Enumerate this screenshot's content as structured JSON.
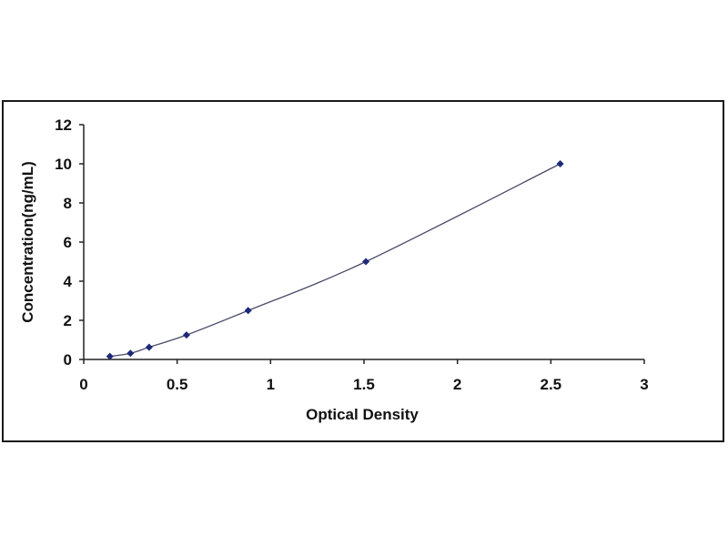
{
  "chart_data": {
    "type": "scatter",
    "title": "",
    "xlabel": "Optical Density",
    "ylabel": "Concentration(ng/mL)",
    "xlim": [
      0,
      3
    ],
    "ylim": [
      0,
      12
    ],
    "x_ticks": [
      "0",
      "0.5",
      "1",
      "1.5",
      "2",
      "2.5",
      "3"
    ],
    "y_ticks": [
      "0",
      "2",
      "4",
      "6",
      "8",
      "10",
      "12"
    ],
    "grid": false,
    "legend": "none",
    "series": [
      {
        "x": [
          0.14,
          0.25,
          0.35,
          0.55,
          0.88,
          1.51,
          2.55
        ],
        "y": [
          0.156,
          0.313,
          0.625,
          1.25,
          2.5,
          5.0,
          10.0
        ],
        "marker_color": "#1c2a78",
        "line_color": "#4a4a6a",
        "fit_curve": true
      }
    ]
  }
}
